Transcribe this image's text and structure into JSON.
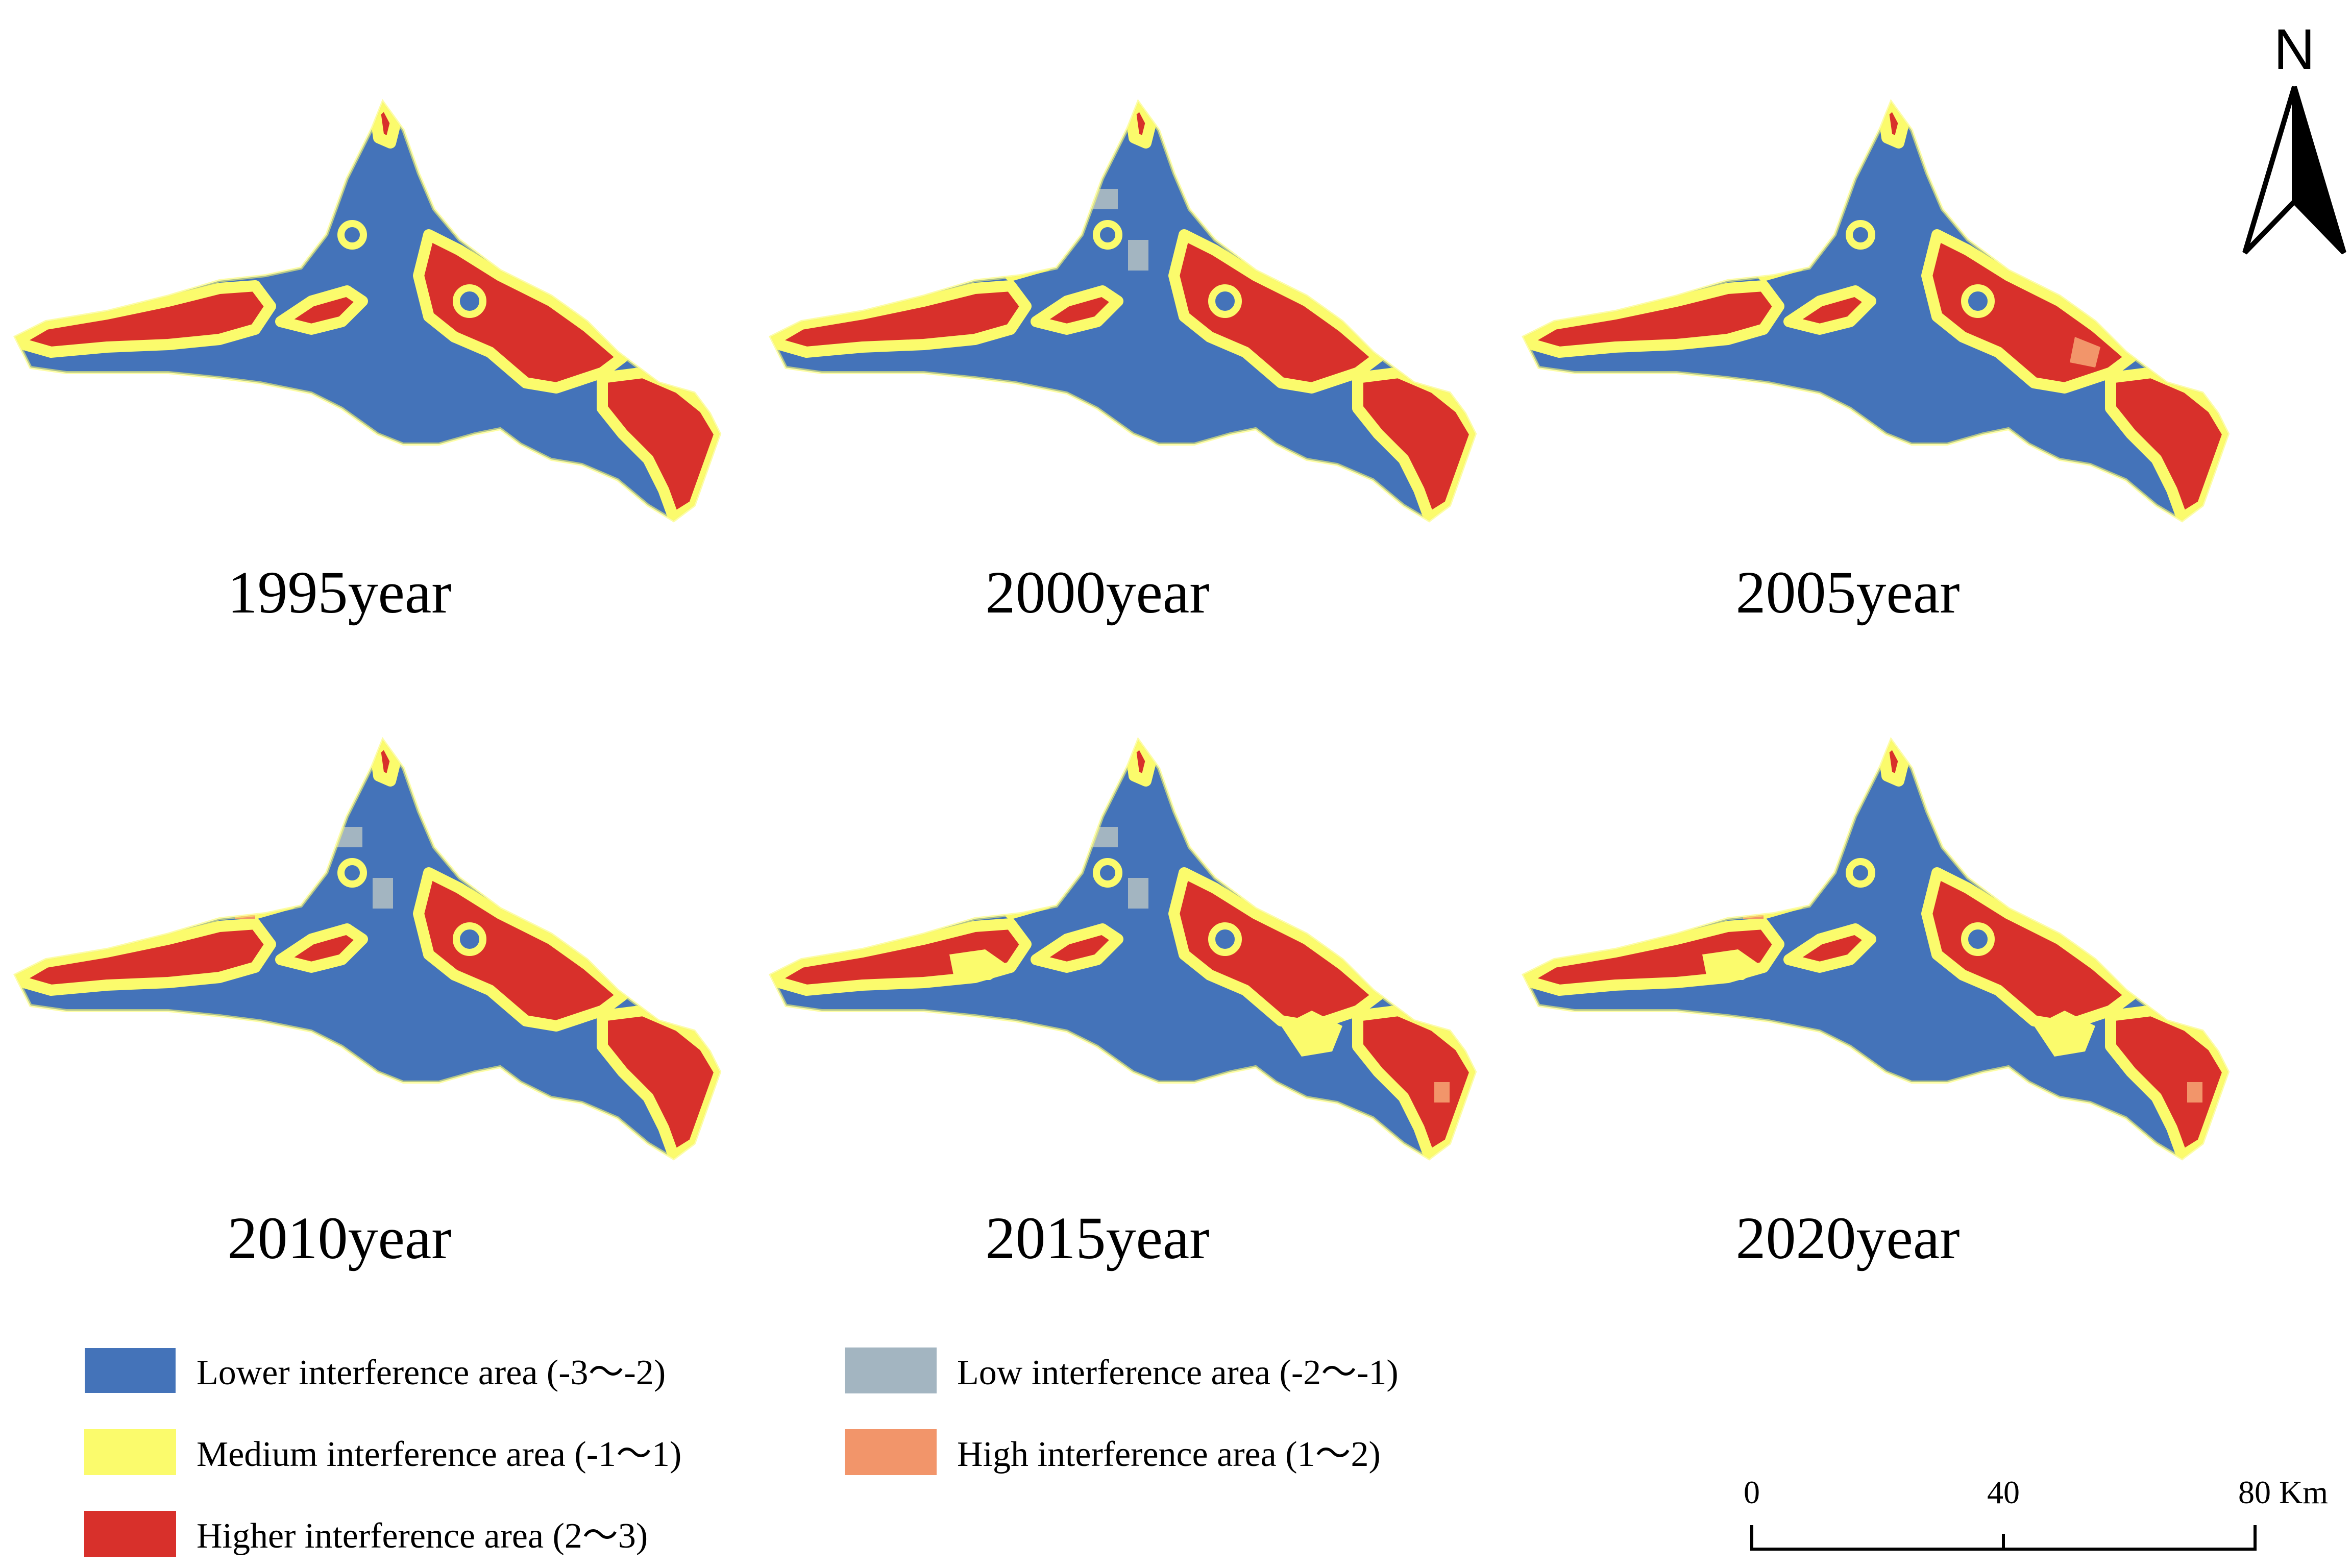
{
  "colors": {
    "lower": "#4473b9",
    "low": "#a3b5c1",
    "medium": "#fbfb6c",
    "high": "#f2956a",
    "higher": "#d8302b"
  },
  "panels": [
    {
      "label": "1995year",
      "variant": "1995"
    },
    {
      "label": "2000year",
      "variant": "2000"
    },
    {
      "label": "2005year",
      "variant": "2005"
    },
    {
      "label": "2010year",
      "variant": "2010"
    },
    {
      "label": "2015year",
      "variant": "2015"
    },
    {
      "label": "2020year",
      "variant": "2020"
    }
  ],
  "legend": [
    {
      "label": "Lower interference area (-3～-2)",
      "color_key": "lower"
    },
    {
      "label": "Low interference area (-2～-1)",
      "color_key": "low"
    },
    {
      "label": "Medium interference area (-1～1)",
      "color_key": "medium"
    },
    {
      "label": "High interference area (1～2)",
      "color_key": "high"
    },
    {
      "label": "Higher interference area (2～3)",
      "color_key": "higher"
    }
  ],
  "north_arrow": {
    "label": "N"
  },
  "scale_bar": {
    "ticks": [
      "0",
      "40",
      "80 Km"
    ]
  }
}
